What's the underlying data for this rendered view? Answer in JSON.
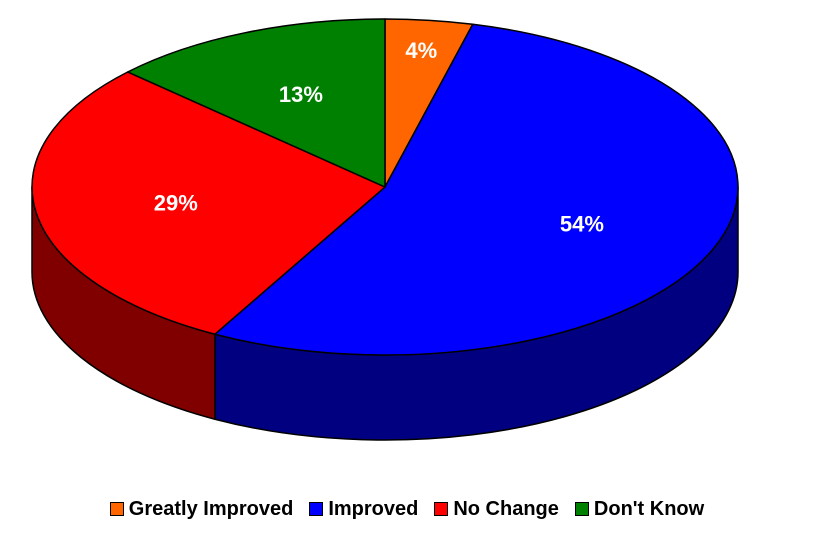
{
  "chart_data": {
    "type": "pie",
    "style": "3d",
    "categories": [
      "Greatly Improved",
      "Improved",
      "No Change",
      "Don't Know"
    ],
    "values": [
      4,
      54,
      29,
      13
    ],
    "labels": [
      "4%",
      "54%",
      "29%",
      "13%"
    ],
    "colors": [
      "#FF6600",
      "#0000FF",
      "#FF0000",
      "#008000"
    ],
    "side_colors": [
      "#993D00",
      "#000080",
      "#800000",
      "#004D00"
    ],
    "legend_position": "bottom"
  }
}
